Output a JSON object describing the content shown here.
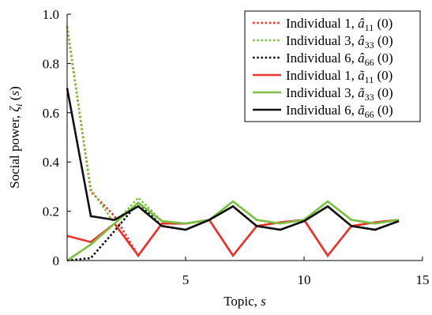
{
  "chart_data": {
    "type": "line",
    "title": "",
    "xlabel": "Topic, ",
    "xlabel_var": "s",
    "ylabel": "Social power, ",
    "ylabel_var": "ζ",
    "ylabel_sub": "i",
    "ylabel_suffix": " (s)",
    "xlim": [
      0,
      15
    ],
    "ylim": [
      0,
      1.0
    ],
    "xticks": [
      5,
      10,
      15
    ],
    "yticks": [
      0,
      0.2,
      0.4,
      0.6,
      0.8,
      1.0
    ],
    "ytick_labels": [
      "0",
      "0.2",
      "0.4",
      "0.6",
      "0.8",
      "1.0"
    ],
    "grid": false,
    "legend_position": "top-right",
    "x": [
      0,
      1,
      2,
      3,
      4,
      5,
      6,
      7,
      8,
      9,
      10,
      11,
      12,
      13,
      14,
      15
    ],
    "series": [
      {
        "name": "Individual 1, â11 (0)",
        "label_main": "Individual 1, ",
        "label_sym": "â",
        "label_sub": "11",
        "label_tail": " (0)",
        "color": "#e8332b",
        "style": "dotted",
        "values": [
          0.95,
          0.28,
          0.18,
          0.02,
          0.15,
          0.15,
          0.165,
          0.02,
          0.14,
          0.155,
          0.165,
          0.02,
          0.14,
          0.155,
          0.165,
          null
        ]
      },
      {
        "name": "Individual 3, â33 (0)",
        "label_main": "Individual 3, ",
        "label_sym": "â",
        "label_sub": "33",
        "label_tail": " (0)",
        "color": "#7ac142",
        "style": "dotted",
        "values": [
          0.95,
          0.29,
          0.15,
          0.255,
          0.16,
          0.15,
          0.165,
          0.24,
          0.165,
          0.15,
          0.165,
          0.24,
          0.165,
          0.15,
          0.165,
          null
        ]
      },
      {
        "name": "Individual 6, â66 (0)",
        "label_main": "Individual 6, ",
        "label_sym": "â",
        "label_sub": "66",
        "label_tail": " (0)",
        "color": "#111111",
        "style": "dotted",
        "values": [
          0.0,
          0.01,
          0.12,
          0.235,
          0.14,
          0.125,
          0.165,
          0.22,
          0.14,
          0.125,
          0.16,
          0.22,
          0.14,
          0.125,
          0.16,
          null
        ]
      },
      {
        "name": "Individual 1, ã11 (0)",
        "label_main": "Individual 1, ",
        "label_sym": "ã",
        "label_sub": "11",
        "label_tail": " (0)",
        "color": "#e8332b",
        "style": "solid",
        "values": [
          0.1,
          0.075,
          0.15,
          0.02,
          0.15,
          0.15,
          0.165,
          0.02,
          0.14,
          0.155,
          0.165,
          0.02,
          0.14,
          0.155,
          0.165,
          null
        ]
      },
      {
        "name": "Individual 3, ã33 (0)",
        "label_main": "Individual 3, ",
        "label_sym": "ã",
        "label_sub": "33",
        "label_tail": " (0)",
        "color": "#7ac142",
        "style": "solid",
        "values": [
          0.0,
          0.065,
          0.15,
          0.235,
          0.16,
          0.15,
          0.165,
          0.24,
          0.165,
          0.15,
          0.165,
          0.24,
          0.165,
          0.15,
          0.165,
          null
        ]
      },
      {
        "name": "Individual 6, ã66 (0)",
        "label_main": "Individual 6, ",
        "label_sym": "ã",
        "label_sub": "66",
        "label_tail": " (0)",
        "color": "#111111",
        "style": "solid",
        "values": [
          0.7,
          0.18,
          0.165,
          0.22,
          0.14,
          0.125,
          0.165,
          0.22,
          0.14,
          0.125,
          0.16,
          0.22,
          0.14,
          0.125,
          0.16,
          null
        ]
      }
    ]
  }
}
